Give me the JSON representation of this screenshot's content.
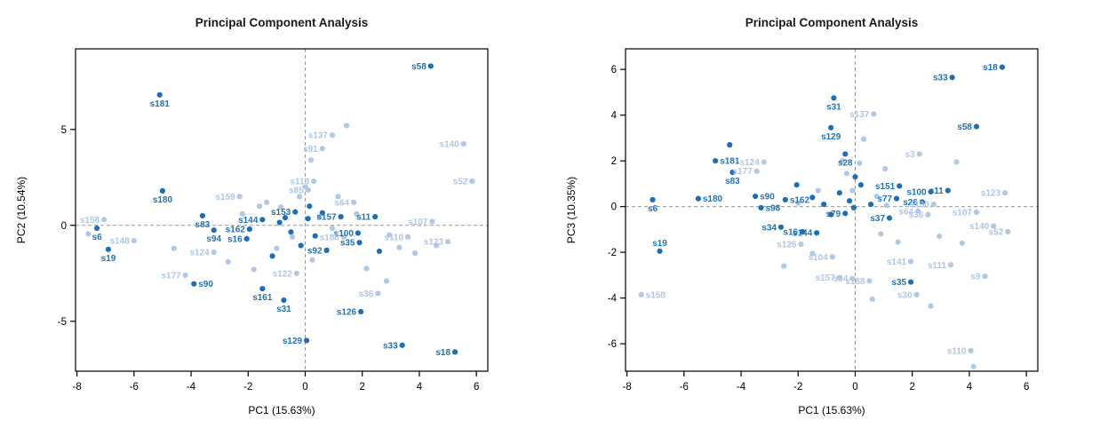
{
  "figure": {
    "background": "#ffffff",
    "panel_count": 2
  },
  "colors": {
    "dark_point": "#1f6db2",
    "light_point": "#b2c8e4",
    "dark_label": "#2273b5",
    "light_label": "#aec6e2",
    "axis": "#000000",
    "refline": "#9a9a9a",
    "title": "#1a1a1a"
  },
  "points_format": [
    "label_or_null",
    "x",
    "y",
    "shade(d=dark,g=light)",
    "label_pos(l,r,a,b)"
  ],
  "chart_data": [
    {
      "type": "scatter",
      "title": "Principal Component Analysis",
      "xlabel": "PC1 (15.63%)",
      "ylabel": "PC2 (10.54%)",
      "xlim": [
        -8.05,
        6.4
      ],
      "ylim": [
        -7.6,
        9.2
      ],
      "xticks": [
        -8,
        -6,
        -4,
        -2,
        0,
        2,
        4,
        6
      ],
      "yticks": [
        -5,
        0,
        5
      ],
      "reflines": {
        "x": 0,
        "y": 0,
        "style": "dashed"
      },
      "grid": false,
      "legend": "none",
      "points": [
        [
          "s58",
          4.4,
          8.3,
          "d",
          "l"
        ],
        [
          "s181",
          -5.1,
          6.8,
          "d",
          "b"
        ],
        [
          "s180",
          -5.0,
          1.8,
          "d",
          "b"
        ],
        [
          "s83",
          -3.6,
          0.5,
          "d",
          "b"
        ],
        [
          "s94",
          -3.2,
          -0.25,
          "d",
          "b"
        ],
        [
          "s6",
          -7.3,
          -0.15,
          "d",
          "b"
        ],
        [
          "s19",
          -6.9,
          -1.25,
          "d",
          "b"
        ],
        [
          "s90",
          -3.9,
          -3.05,
          "d",
          "r"
        ],
        [
          "s161",
          -1.5,
          -3.3,
          "d",
          "b"
        ],
        [
          "s31",
          -0.75,
          -3.9,
          "d",
          "b"
        ],
        [
          "s129",
          0.05,
          -6.0,
          "d",
          "l"
        ],
        [
          "s126",
          1.95,
          -4.5,
          "d",
          "l"
        ],
        [
          "s33",
          3.4,
          -6.25,
          "d",
          "l"
        ],
        [
          "s18",
          5.25,
          -6.6,
          "d",
          "l"
        ],
        [
          "s92",
          0.75,
          -1.3,
          "d",
          "l"
        ],
        [
          "s35",
          1.9,
          -0.9,
          "d",
          "l"
        ],
        [
          "s100",
          1.85,
          -0.4,
          "d",
          "l"
        ],
        [
          "s11",
          2.45,
          0.45,
          "d",
          "l"
        ],
        [
          "s144",
          -1.5,
          0.3,
          "d",
          "l"
        ],
        [
          "s162",
          -1.95,
          -0.2,
          "d",
          "l"
        ],
        [
          "s16",
          -2.05,
          -0.7,
          "d",
          "l"
        ],
        [
          "s157",
          1.25,
          0.45,
          "d",
          "l"
        ],
        [
          "s153",
          -0.35,
          0.7,
          "d",
          "l"
        ],
        [
          null,
          -0.9,
          0.15,
          "d",
          "l"
        ],
        [
          null,
          -0.5,
          -0.35,
          "d",
          "l"
        ],
        [
          null,
          0.1,
          0.35,
          "d",
          "l"
        ],
        [
          null,
          0.35,
          -0.55,
          "d",
          "l"
        ],
        [
          null,
          -0.15,
          -1.05,
          "d",
          "l"
        ],
        [
          null,
          0.6,
          0.65,
          "d",
          "l"
        ],
        [
          null,
          2.6,
          -1.35,
          "d",
          "l"
        ],
        [
          null,
          -1.15,
          -1.6,
          "d",
          "l"
        ],
        [
          null,
          -0.7,
          0.4,
          "d",
          "l"
        ],
        [
          null,
          0.15,
          1.0,
          "d",
          "l"
        ],
        [
          "s137",
          0.95,
          4.7,
          "g",
          "l"
        ],
        [
          "s91",
          0.6,
          4.0,
          "g",
          "l"
        ],
        [
          "s140",
          5.55,
          4.25,
          "g",
          "l"
        ],
        [
          "s52",
          5.85,
          2.3,
          "g",
          "l"
        ],
        [
          "s118",
          0.3,
          2.3,
          "g",
          "l"
        ],
        [
          "s85",
          0.1,
          1.85,
          "g",
          "l"
        ],
        [
          "s159",
          -2.3,
          1.5,
          "g",
          "l"
        ],
        [
          "s64",
          1.7,
          1.2,
          "g",
          "l"
        ],
        [
          "s158",
          -7.05,
          0.3,
          "g",
          "l"
        ],
        [
          "s148",
          -6.0,
          -0.8,
          "g",
          "l"
        ],
        [
          "s124",
          -3.2,
          -1.4,
          "g",
          "l"
        ],
        [
          "s177",
          -4.2,
          -2.6,
          "g",
          "l"
        ],
        [
          "s122",
          -0.3,
          -2.5,
          "g",
          "l"
        ],
        [
          "s36",
          2.55,
          -3.55,
          "g",
          "l"
        ],
        [
          "s107",
          4.45,
          0.2,
          "g",
          "l"
        ],
        [
          "s110",
          3.6,
          -0.6,
          "g",
          "l"
        ],
        [
          "s123",
          5.0,
          -0.85,
          "g",
          "l"
        ],
        [
          "s188",
          1.35,
          -0.6,
          "g",
          "l"
        ],
        [
          null,
          -7.6,
          -0.45,
          "g",
          "l"
        ],
        [
          null,
          1.45,
          5.2,
          "g",
          "l"
        ],
        [
          null,
          0.2,
          3.4,
          "g",
          "l"
        ],
        [
          null,
          -1.35,
          1.2,
          "g",
          "l"
        ],
        [
          null,
          -0.85,
          0.95,
          "g",
          "l"
        ],
        [
          null,
          0.5,
          0.45,
          "g",
          "l"
        ],
        [
          null,
          0.95,
          -0.15,
          "g",
          "l"
        ],
        [
          null,
          -0.45,
          -0.6,
          "g",
          "l"
        ],
        [
          null,
          -1.0,
          -1.2,
          "g",
          "l"
        ],
        [
          null,
          0.25,
          -1.8,
          "g",
          "l"
        ],
        [
          null,
          -2.7,
          -1.9,
          "g",
          "l"
        ],
        [
          null,
          -1.8,
          -2.3,
          "g",
          "l"
        ],
        [
          null,
          2.15,
          -2.25,
          "g",
          "l"
        ],
        [
          null,
          2.85,
          -2.9,
          "g",
          "l"
        ],
        [
          null,
          3.3,
          -1.15,
          "g",
          "l"
        ],
        [
          null,
          3.85,
          -1.45,
          "g",
          "l"
        ],
        [
          null,
          4.6,
          -1.05,
          "g",
          "l"
        ],
        [
          null,
          2.95,
          -0.5,
          "g",
          "l"
        ],
        [
          null,
          -2.2,
          0.6,
          "g",
          "l"
        ],
        [
          null,
          -1.6,
          1.0,
          "g",
          "l"
        ],
        [
          null,
          0.0,
          2.0,
          "g",
          "l"
        ],
        [
          null,
          -0.2,
          1.5,
          "g",
          "l"
        ],
        [
          null,
          1.15,
          1.5,
          "g",
          "l"
        ],
        [
          null,
          1.8,
          0.6,
          "g",
          "l"
        ],
        [
          null,
          -4.6,
          -1.2,
          "g",
          "l"
        ]
      ]
    },
    {
      "type": "scatter",
      "title": "Principal Component Analysis",
      "xlabel": "PC1 (15.63%)",
      "ylabel": "PC3 (10.35%)",
      "xlim": [
        -8.05,
        6.4
      ],
      "ylim": [
        -7.2,
        6.9
      ],
      "xticks": [
        -8,
        -6,
        -4,
        -2,
        0,
        2,
        4,
        6
      ],
      "yticks": [
        -6,
        -4,
        -2,
        0,
        2,
        4,
        6
      ],
      "reflines": {
        "x": 0,
        "y": 0,
        "style": "dashed"
      },
      "grid": false,
      "legend": "none",
      "points": [
        [
          "s18",
          5.15,
          6.1,
          "d",
          "l"
        ],
        [
          "s33",
          3.4,
          5.65,
          "d",
          "l"
        ],
        [
          "s58",
          4.25,
          3.5,
          "d",
          "l"
        ],
        [
          "s31",
          -0.75,
          4.75,
          "d",
          "b"
        ],
        [
          "s129",
          -0.85,
          3.45,
          "d",
          "b"
        ],
        [
          "s28",
          -0.35,
          2.3,
          "d",
          "b"
        ],
        [
          "s181",
          -4.9,
          2.0,
          "d",
          "r"
        ],
        [
          "s83",
          -4.3,
          1.5,
          "d",
          "b"
        ],
        [
          "s151",
          1.55,
          0.9,
          "d",
          "l"
        ],
        [
          "s100",
          2.65,
          0.65,
          "d",
          "l"
        ],
        [
          "s11",
          3.25,
          0.7,
          "d",
          "l"
        ],
        [
          "s77",
          1.45,
          0.35,
          "d",
          "l"
        ],
        [
          "s26",
          2.35,
          0.2,
          "d",
          "l"
        ],
        [
          "s180",
          -5.5,
          0.35,
          "d",
          "r"
        ],
        [
          "s6",
          -7.1,
          0.3,
          "d",
          "b"
        ],
        [
          "s90",
          -3.5,
          0.45,
          "d",
          "r"
        ],
        [
          "s98",
          -3.3,
          -0.05,
          "d",
          "r"
        ],
        [
          "s162",
          -2.45,
          0.3,
          "d",
          "r"
        ],
        [
          "s34",
          -2.6,
          -0.9,
          "d",
          "l"
        ],
        [
          "s16",
          -1.85,
          -1.1,
          "d",
          "l"
        ],
        [
          "s144",
          -1.35,
          -1.15,
          "d",
          "l"
        ],
        [
          "s19",
          -6.85,
          -1.95,
          "d",
          "a"
        ],
        [
          "s35",
          1.95,
          -3.3,
          "d",
          "l"
        ],
        [
          "s37",
          1.2,
          -0.5,
          "d",
          "l"
        ],
        [
          "s79",
          -0.35,
          -0.3,
          "d",
          "l"
        ],
        [
          null,
          -0.55,
          0.6,
          "d",
          "l"
        ],
        [
          null,
          -1.1,
          0.1,
          "d",
          "l"
        ],
        [
          null,
          -0.2,
          0.25,
          "d",
          "l"
        ],
        [
          null,
          0.2,
          0.95,
          "d",
          "l"
        ],
        [
          null,
          0.55,
          0.1,
          "d",
          "l"
        ],
        [
          null,
          -0.85,
          -0.35,
          "d",
          "l"
        ],
        [
          null,
          -1.5,
          0.4,
          "d",
          "l"
        ],
        [
          null,
          -0.05,
          -0.05,
          "d",
          "l"
        ],
        [
          null,
          0.0,
          1.3,
          "d",
          "l"
        ],
        [
          null,
          -4.4,
          2.7,
          "d",
          "l"
        ],
        [
          null,
          -2.05,
          0.95,
          "d",
          "l"
        ],
        [
          "s137",
          0.65,
          4.05,
          "g",
          "l"
        ],
        [
          "s124",
          -3.2,
          1.95,
          "g",
          "l"
        ],
        [
          "s177",
          -3.45,
          1.55,
          "g",
          "l"
        ],
        [
          "s3",
          2.25,
          2.3,
          "g",
          "l"
        ],
        [
          "s123",
          5.25,
          0.6,
          "g",
          "l"
        ],
        [
          "s107",
          4.25,
          -0.25,
          "g",
          "l"
        ],
        [
          "s140",
          4.85,
          -0.85,
          "g",
          "l"
        ],
        [
          "s52",
          5.35,
          -1.1,
          "g",
          "l"
        ],
        [
          "s130",
          2.75,
          0.1,
          "g",
          "l"
        ],
        [
          "s30",
          2.15,
          -3.85,
          "g",
          "l"
        ],
        [
          "s141",
          1.95,
          -2.4,
          "g",
          "l"
        ],
        [
          "s111",
          3.35,
          -2.55,
          "g",
          "l"
        ],
        [
          "s9",
          4.55,
          -3.05,
          "g",
          "l"
        ],
        [
          "s157",
          -0.55,
          -3.1,
          "g",
          "l"
        ],
        [
          "s54",
          -0.1,
          -3.15,
          "g",
          "l"
        ],
        [
          "s188",
          0.5,
          -3.25,
          "g",
          "l"
        ],
        [
          "s104",
          -0.8,
          -2.2,
          "g",
          "l"
        ],
        [
          "s125",
          -1.9,
          -1.65,
          "g",
          "l"
        ],
        [
          "s158",
          -7.5,
          -3.85,
          "g",
          "r"
        ],
        [
          "s110",
          4.05,
          -6.3,
          "g",
          "l"
        ],
        [
          "s64",
          2.2,
          -0.2,
          "g",
          "l"
        ],
        [
          "s36",
          2.55,
          -0.35,
          "g",
          "l"
        ],
        [
          null,
          0.3,
          2.95,
          "g",
          "l"
        ],
        [
          null,
          1.05,
          1.65,
          "g",
          "l"
        ],
        [
          null,
          -0.3,
          1.45,
          "g",
          "l"
        ],
        [
          null,
          3.55,
          1.95,
          "g",
          "l"
        ],
        [
          null,
          -2.5,
          -2.6,
          "g",
          "l"
        ],
        [
          null,
          -1.5,
          -2.05,
          "g",
          "l"
        ],
        [
          null,
          0.9,
          -1.2,
          "g",
          "l"
        ],
        [
          null,
          1.5,
          -1.55,
          "g",
          "l"
        ],
        [
          null,
          0.6,
          -4.05,
          "g",
          "l"
        ],
        [
          null,
          2.65,
          -4.35,
          "g",
          "l"
        ],
        [
          null,
          4.15,
          -7.0,
          "g",
          "l"
        ],
        [
          null,
          -0.1,
          0.7,
          "g",
          "l"
        ],
        [
          null,
          0.75,
          0.45,
          "g",
          "l"
        ],
        [
          null,
          1.1,
          0.05,
          "g",
          "l"
        ],
        [
          null,
          -1.3,
          0.7,
          "g",
          "l"
        ],
        [
          null,
          -2.0,
          0.15,
          "g",
          "l"
        ],
        [
          null,
          2.95,
          -1.3,
          "g",
          "l"
        ],
        [
          null,
          3.75,
          -1.6,
          "g",
          "l"
        ],
        [
          null,
          -0.45,
          2.0,
          "g",
          "l"
        ],
        [
          null,
          0.15,
          1.9,
          "g",
          "l"
        ]
      ]
    }
  ]
}
